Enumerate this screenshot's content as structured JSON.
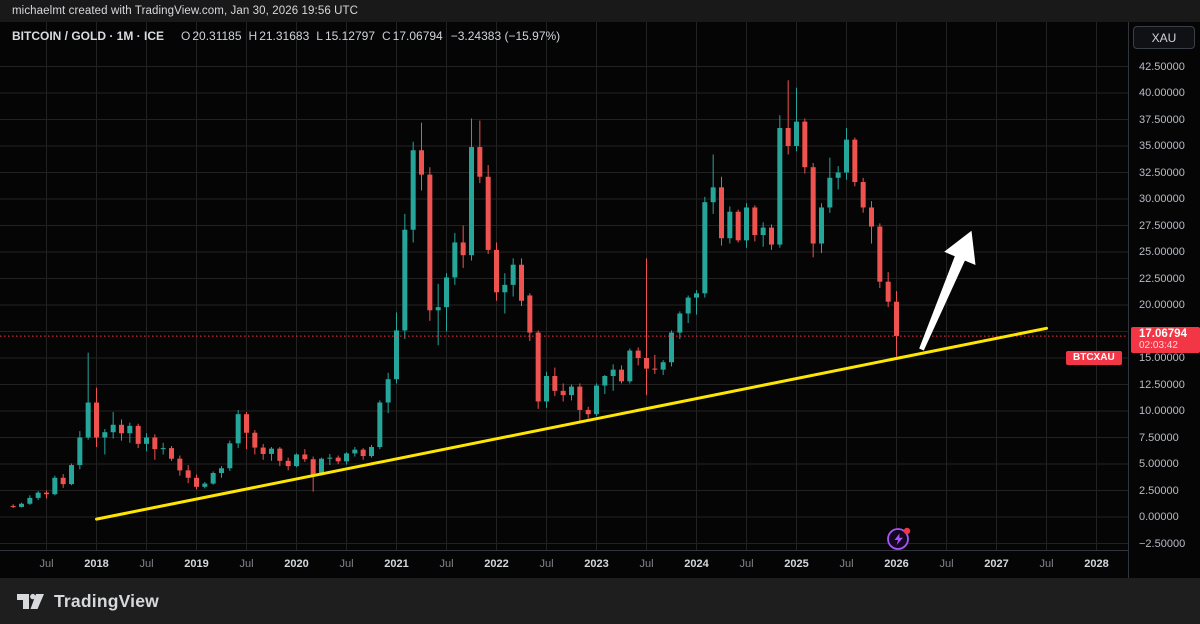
{
  "top_bar": {
    "attribution": "michaelmt created with TradingView.com, Jan 30, 2026 19:56 UTC"
  },
  "legend": {
    "title": "BITCOIN / GOLD · 1M · ICE",
    "ohlc": [
      {
        "label": "O",
        "value": "20.31185"
      },
      {
        "label": "H",
        "value": "21.31683"
      },
      {
        "label": "L",
        "value": "15.12797"
      },
      {
        "label": "C",
        "value": "17.06794"
      }
    ],
    "change": "−3.24383 (−15.97%)"
  },
  "price_scale": {
    "currency_button": "XAU",
    "ticks": [
      "42.50000",
      "40.00000",
      "37.50000",
      "35.00000",
      "32.50000",
      "30.00000",
      "27.50000",
      "25.00000",
      "22.50000",
      "20.00000",
      "17.50000",
      "15.00000",
      "12.50000",
      "10.00000",
      "7.50000",
      "5.00000",
      "2.50000",
      "0.00000",
      "−2.50000"
    ],
    "price_label": {
      "symbol": "BTCXAU",
      "price": "17.06794",
      "countdown": "02:03:42"
    }
  },
  "time_axis": {
    "ticks": [
      "Jul",
      "2018",
      "Jul",
      "2019",
      "Jul",
      "2020",
      "Jul",
      "2021",
      "Jul",
      "2022",
      "Jul",
      "2023",
      "Jul",
      "2024",
      "Jul",
      "2025",
      "Jul",
      "2026",
      "Jul",
      "2027",
      "Jul",
      "2028"
    ]
  },
  "footer": {
    "brand": "TradingView"
  },
  "colors": {
    "up": "#26a69a",
    "down": "#ef5350",
    "price_line": "#f23645",
    "trendline": "#ffe600",
    "arrow": "#ffffff",
    "grid": "#222222"
  },
  "chart_data": {
    "type": "candlestick",
    "title": "BITCOIN / GOLD",
    "ticker": "BTCXAU",
    "interval": "1M",
    "exchange": "ICE",
    "ylim": [
      -2.5,
      42.5
    ],
    "grid": true,
    "current_price": 17.06794,
    "current_bar": {
      "open": 20.31185,
      "high": 21.31683,
      "low": 15.12797,
      "close": 17.06794,
      "change": -3.24383,
      "change_pct": -15.97
    },
    "columns": [
      "month",
      "open",
      "high",
      "low",
      "close"
    ],
    "candles": [
      [
        "2017-03",
        1.05,
        1.2,
        0.85,
        0.95
      ],
      [
        "2017-04",
        0.95,
        1.35,
        0.9,
        1.25
      ],
      [
        "2017-05",
        1.25,
        2.05,
        1.15,
        1.8
      ],
      [
        "2017-06",
        1.8,
        2.45,
        1.6,
        2.3
      ],
      [
        "2017-07",
        2.3,
        2.5,
        1.75,
        2.15
      ],
      [
        "2017-08",
        2.15,
        3.9,
        2.05,
        3.7
      ],
      [
        "2017-09",
        3.7,
        4.05,
        2.75,
        3.1
      ],
      [
        "2017-10",
        3.1,
        5.05,
        3.0,
        4.9
      ],
      [
        "2017-11",
        4.9,
        8.1,
        4.5,
        7.5
      ],
      [
        "2017-12",
        7.5,
        15.5,
        7.3,
        10.8
      ],
      [
        "2018-01",
        10.8,
        12.2,
        6.6,
        7.5
      ],
      [
        "2018-02",
        7.5,
        8.3,
        5.9,
        8.0
      ],
      [
        "2018-03",
        8.0,
        9.9,
        7.4,
        8.7
      ],
      [
        "2018-04",
        8.7,
        9.2,
        7.2,
        7.9
      ],
      [
        "2018-05",
        7.9,
        8.9,
        7.0,
        8.6
      ],
      [
        "2018-06",
        8.6,
        8.8,
        6.5,
        6.9
      ],
      [
        "2018-07",
        6.9,
        7.9,
        6.2,
        7.5
      ],
      [
        "2018-08",
        7.5,
        7.8,
        5.4,
        6.4
      ],
      [
        "2018-09",
        6.4,
        7.0,
        5.9,
        6.5
      ],
      [
        "2018-10",
        6.5,
        6.7,
        5.3,
        5.5
      ],
      [
        "2018-11",
        5.5,
        5.8,
        3.9,
        4.4
      ],
      [
        "2018-12",
        4.4,
        4.9,
        3.2,
        3.7
      ],
      [
        "2019-01",
        3.7,
        4.0,
        2.6,
        2.85
      ],
      [
        "2019-02",
        2.85,
        3.3,
        2.7,
        3.15
      ],
      [
        "2019-03",
        3.15,
        4.3,
        3.05,
        4.15
      ],
      [
        "2019-04",
        4.15,
        4.8,
        3.7,
        4.6
      ],
      [
        "2019-05",
        4.6,
        7.2,
        4.35,
        6.95
      ],
      [
        "2019-06",
        6.95,
        10.1,
        6.5,
        9.7
      ],
      [
        "2019-07",
        9.7,
        9.9,
        6.4,
        7.95
      ],
      [
        "2019-08",
        7.95,
        8.2,
        5.9,
        6.55
      ],
      [
        "2019-09",
        6.55,
        6.9,
        5.4,
        5.95
      ],
      [
        "2019-10",
        5.95,
        6.6,
        5.3,
        6.45
      ],
      [
        "2019-11",
        6.45,
        6.6,
        4.8,
        5.3
      ],
      [
        "2019-12",
        5.3,
        5.6,
        4.4,
        4.8
      ],
      [
        "2020-01",
        4.8,
        6.0,
        4.7,
        5.9
      ],
      [
        "2020-02",
        5.9,
        6.4,
        5.2,
        5.45
      ],
      [
        "2020-03",
        5.45,
        5.7,
        2.4,
        4.0
      ],
      [
        "2020-04",
        4.0,
        5.6,
        3.9,
        5.5
      ],
      [
        "2020-05",
        5.5,
        5.95,
        4.9,
        5.6
      ],
      [
        "2020-06",
        5.6,
        5.8,
        5.0,
        5.25
      ],
      [
        "2020-07",
        5.25,
        6.1,
        4.95,
        6.0
      ],
      [
        "2020-08",
        6.0,
        6.6,
        5.7,
        6.35
      ],
      [
        "2020-09",
        6.35,
        6.5,
        5.4,
        5.75
      ],
      [
        "2020-10",
        5.75,
        6.8,
        5.6,
        6.6
      ],
      [
        "2020-11",
        6.6,
        11.0,
        6.4,
        10.8
      ],
      [
        "2020-12",
        10.8,
        13.6,
        9.8,
        13.0
      ],
      [
        "2021-01",
        13.0,
        19.3,
        12.6,
        17.6
      ],
      [
        "2021-02",
        17.6,
        28.6,
        16.8,
        27.1
      ],
      [
        "2021-03",
        27.1,
        35.4,
        25.9,
        34.6
      ],
      [
        "2021-04",
        34.6,
        37.2,
        30.8,
        32.3
      ],
      [
        "2021-05",
        32.3,
        33.0,
        18.5,
        19.5
      ],
      [
        "2021-06",
        19.5,
        22.0,
        16.2,
        19.8
      ],
      [
        "2021-07",
        19.8,
        23.0,
        17.5,
        22.6
      ],
      [
        "2021-08",
        22.6,
        26.8,
        21.9,
        25.9
      ],
      [
        "2021-09",
        25.9,
        27.5,
        23.5,
        24.7
      ],
      [
        "2021-10",
        24.7,
        37.6,
        24.2,
        34.9
      ],
      [
        "2021-11",
        34.9,
        37.4,
        31.5,
        32.1
      ],
      [
        "2021-12",
        32.1,
        33.2,
        24.8,
        25.2
      ],
      [
        "2022-01",
        25.2,
        25.9,
        20.4,
        21.2
      ],
      [
        "2022-02",
        21.2,
        23.0,
        19.2,
        21.9
      ],
      [
        "2022-03",
        21.9,
        24.4,
        20.8,
        23.8
      ],
      [
        "2022-04",
        23.8,
        24.4,
        19.9,
        20.4
      ],
      [
        "2022-05",
        20.9,
        21.1,
        16.6,
        17.4
      ],
      [
        "2022-06",
        17.4,
        17.6,
        10.2,
        10.9
      ],
      [
        "2022-07",
        10.9,
        13.7,
        10.3,
        13.3
      ],
      [
        "2022-08",
        13.3,
        14.1,
        11.4,
        11.9
      ],
      [
        "2022-09",
        11.9,
        12.6,
        10.9,
        11.5
      ],
      [
        "2022-10",
        11.5,
        12.5,
        11.0,
        12.3
      ],
      [
        "2022-11",
        12.3,
        12.6,
        9.0,
        10.1
      ],
      [
        "2022-12",
        10.1,
        10.4,
        9.3,
        9.7
      ],
      [
        "2023-01",
        9.7,
        12.6,
        9.5,
        12.4
      ],
      [
        "2023-02",
        12.4,
        13.4,
        11.6,
        13.3
      ],
      [
        "2023-03",
        13.3,
        14.4,
        11.9,
        13.9
      ],
      [
        "2023-04",
        13.9,
        14.3,
        12.6,
        12.8
      ],
      [
        "2023-05",
        12.8,
        15.9,
        12.6,
        15.7
      ],
      [
        "2023-06",
        15.7,
        16.0,
        14.3,
        15.0
      ],
      [
        "2023-07",
        15.0,
        24.4,
        11.5,
        14.0
      ],
      [
        "2023-08",
        14.0,
        15.3,
        13.5,
        13.9
      ],
      [
        "2023-09",
        13.9,
        14.8,
        13.4,
        14.6
      ],
      [
        "2023-10",
        14.6,
        17.6,
        14.2,
        17.4
      ],
      [
        "2023-11",
        17.4,
        19.4,
        16.8,
        19.2
      ],
      [
        "2023-12",
        19.2,
        20.9,
        18.3,
        20.7
      ],
      [
        "2024-01",
        20.7,
        21.4,
        19.1,
        21.1
      ],
      [
        "2024-02",
        21.1,
        30.2,
        20.7,
        29.7
      ],
      [
        "2024-03",
        29.7,
        34.2,
        28.6,
        31.1
      ],
      [
        "2024-04",
        31.1,
        32.1,
        25.6,
        26.3
      ],
      [
        "2024-05",
        26.3,
        29.3,
        25.8,
        28.8
      ],
      [
        "2024-06",
        28.8,
        29.0,
        25.9,
        26.1
      ],
      [
        "2024-07",
        26.1,
        29.6,
        25.4,
        29.2
      ],
      [
        "2024-08",
        29.2,
        29.4,
        26.0,
        26.6
      ],
      [
        "2024-09",
        26.6,
        27.8,
        25.5,
        27.3
      ],
      [
        "2024-10",
        27.3,
        27.6,
        25.2,
        25.7
      ],
      [
        "2024-11",
        25.7,
        37.9,
        25.4,
        36.7
      ],
      [
        "2024-12",
        36.7,
        41.2,
        34.2,
        35.0
      ],
      [
        "2025-01",
        35.0,
        40.5,
        34.5,
        37.3
      ],
      [
        "2025-02",
        37.3,
        37.6,
        32.4,
        33.0
      ],
      [
        "2025-03",
        33.0,
        33.4,
        24.5,
        25.8
      ],
      [
        "2025-04",
        25.8,
        29.6,
        24.9,
        29.2
      ],
      [
        "2025-05",
        29.2,
        33.9,
        28.7,
        32.0
      ],
      [
        "2025-06",
        32.0,
        33.1,
        30.9,
        32.5
      ],
      [
        "2025-07",
        32.5,
        36.7,
        31.8,
        35.6
      ],
      [
        "2025-08",
        35.6,
        35.8,
        31.2,
        31.6
      ],
      [
        "2025-09",
        31.6,
        32.0,
        28.7,
        29.2
      ],
      [
        "2025-10",
        29.2,
        29.8,
        25.8,
        27.4
      ],
      [
        "2025-11",
        27.4,
        27.7,
        21.6,
        22.2
      ],
      [
        "2025-12",
        22.2,
        23.1,
        19.8,
        20.31
      ],
      [
        "2026-01",
        20.31185,
        21.31683,
        15.12797,
        17.06794
      ]
    ],
    "drawings": {
      "trendline": {
        "from": {
          "t": "2018-01",
          "v": -0.2
        },
        "to": {
          "t": "2027-07",
          "v": 17.8
        }
      },
      "arrow": {
        "from": {
          "t": "2026-04",
          "v": 15.8
        },
        "to": {
          "t": "2026-10",
          "v": 27.0
        }
      }
    }
  }
}
